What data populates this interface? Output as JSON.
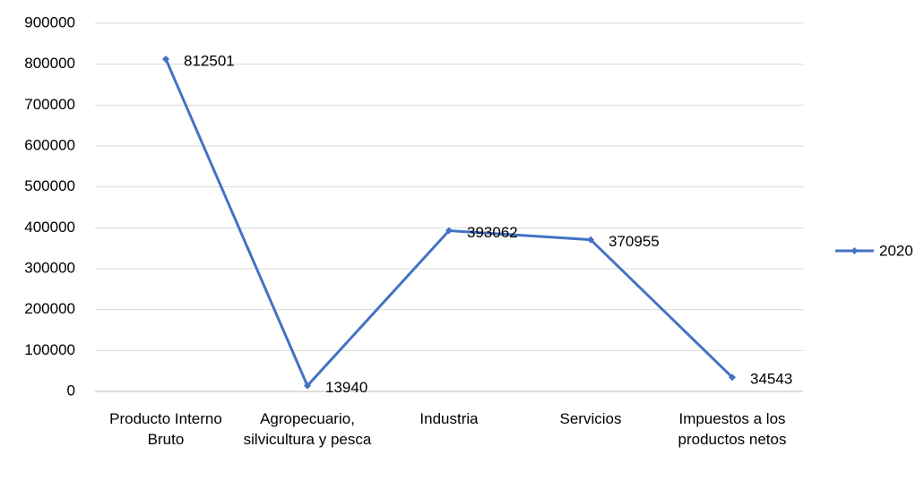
{
  "chart_data": {
    "type": "line",
    "categories": [
      "Producto Interno Bruto",
      "Agropecuario, silvicultura y pesca",
      "Industria",
      "Servicios",
      "Impuestos a los productos netos"
    ],
    "series": [
      {
        "name": "2020",
        "color": "#4472c4",
        "values": [
          812501,
          13940,
          393062,
          370955,
          34543
        ]
      }
    ],
    "ylim": [
      0,
      900000
    ],
    "yticks": [
      0,
      100000,
      200000,
      300000,
      400000,
      500000,
      600000,
      700000,
      800000,
      900000
    ],
    "grid": true,
    "legend": "right"
  }
}
